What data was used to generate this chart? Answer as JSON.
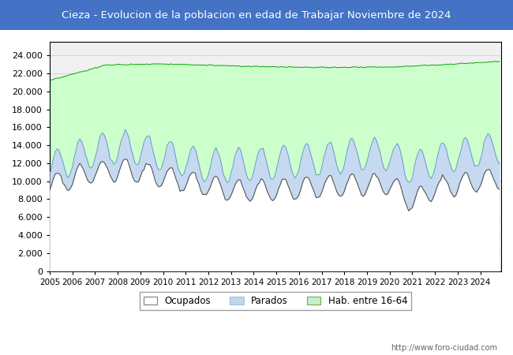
{
  "title": "Cieza - Evolucion de la poblacion en edad de Trabajar Noviembre de 2024",
  "title_bg": "#4472C4",
  "title_color": "#FFFFFF",
  "ylim": [
    0,
    25500
  ],
  "yticks": [
    0,
    2000,
    4000,
    6000,
    8000,
    10000,
    12000,
    14000,
    16000,
    18000,
    20000,
    22000,
    24000
  ],
  "legend_labels": [
    "Ocupados",
    "Parados",
    "Hab. entre 16-64"
  ],
  "legend_colors": [
    "#FFFFFF",
    "#BDD7EE",
    "#C6EFCE"
  ],
  "legend_edge_colors": [
    "#7F7F7F",
    "#9DC3E6",
    "#70AD47"
  ],
  "footer_text": "http://www.foro-ciudad.com",
  "hab_fill_color": "#CCFFCC",
  "hab_line_color": "#00AA00",
  "parados_fill_color": "#C6D9F1",
  "parados_line_color": "#6699CC",
  "ocupados_fill_color": "#FFFFFF",
  "ocupados_line_color": "#555555",
  "grid_color": "#CCCCCC",
  "plot_bg": "#F0F0F0",
  "fig_bg": "#FFFFFF",
  "n_months": 239,
  "year_start": 2005
}
